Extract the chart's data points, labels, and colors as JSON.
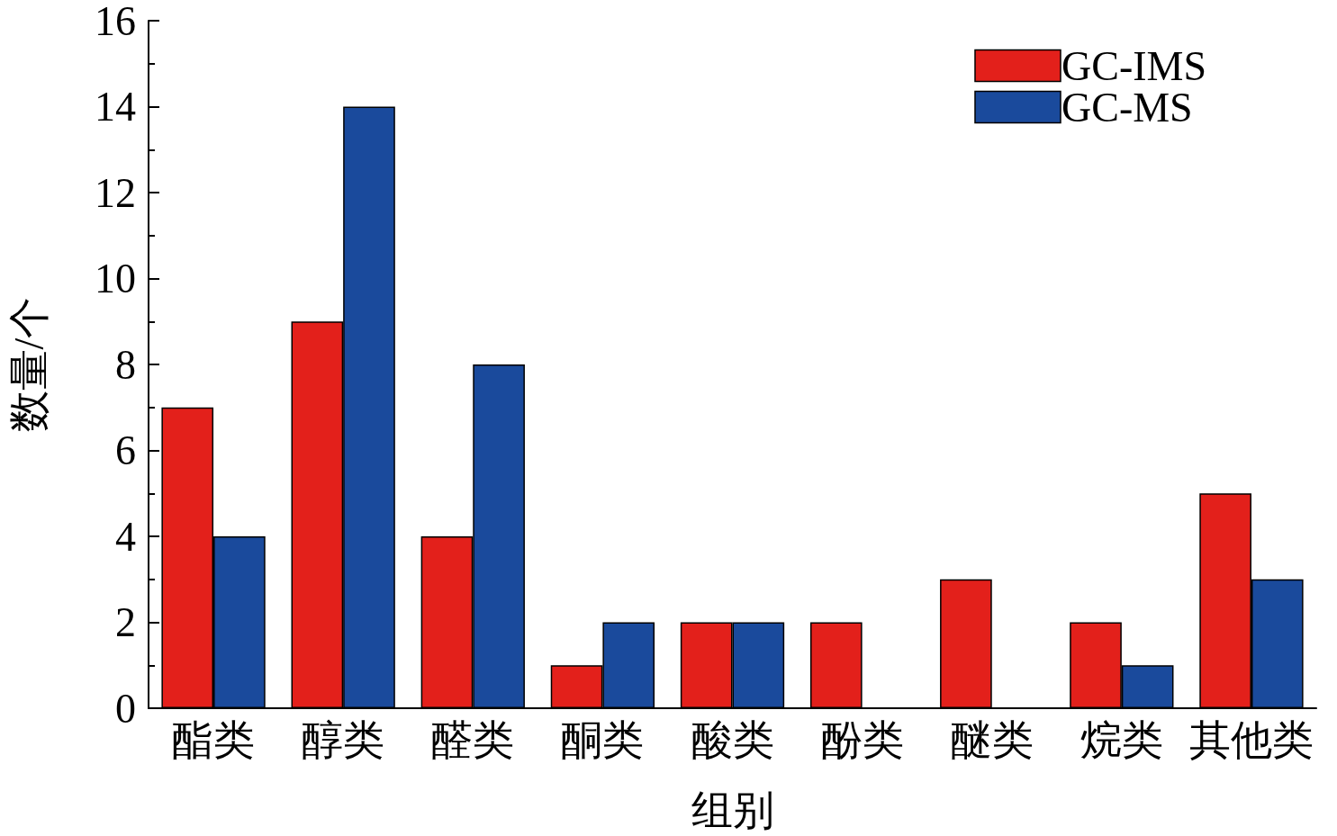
{
  "chart_data": {
    "type": "bar",
    "xlabel": "组别",
    "ylabel": "数量/个",
    "categories": [
      "酯类",
      "醇类",
      "醛类",
      "酮类",
      "酸类",
      "酚类",
      "醚类",
      "烷类",
      "其他类"
    ],
    "series": [
      {
        "name": "GC-IMS",
        "color": "#e3201b",
        "values": [
          7,
          9,
          4,
          1,
          2,
          2,
          3,
          2,
          5
        ]
      },
      {
        "name": "GC-MS",
        "color": "#1a4a9c",
        "values": [
          4,
          14,
          8,
          2,
          2,
          0,
          0,
          1,
          3
        ]
      }
    ],
    "ylim": [
      0,
      16
    ],
    "yticks": [
      0,
      2,
      4,
      6,
      8,
      10,
      12,
      14,
      16
    ],
    "grid": false,
    "legend": "top right"
  }
}
